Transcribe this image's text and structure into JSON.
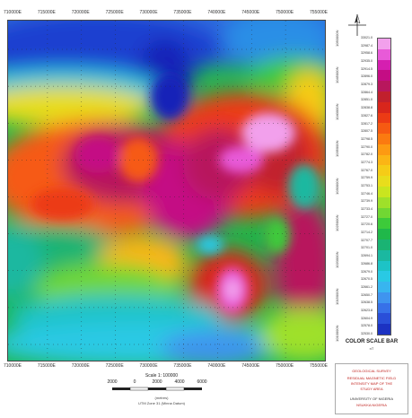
{
  "map": {
    "grid_top_labels": [
      "710000E",
      "715000E",
      "720000E",
      "725000E",
      "730000E",
      "735000E",
      "740000E",
      "745000E",
      "750000E",
      "755000E"
    ],
    "grid_bottom_labels": [
      "710000E",
      "715000E",
      "720000E",
      "725000E",
      "730000E",
      "735000E",
      "740000E",
      "745000E",
      "750000E",
      "755000E"
    ],
    "grid_right_labels": [
      "1050000N",
      "1045000N",
      "1040000N",
      "1035000N",
      "1030000N",
      "1025000N",
      "1020000N",
      "1015000N",
      "1010000N"
    ]
  },
  "north_arrow": {
    "icon": "north-arrow-icon"
  },
  "colorbar": {
    "title": "COLOR SCALE BAR",
    "unit": "nT",
    "labels": [
      "33021.0",
      "32987.4",
      "32958.6",
      "32935.0",
      "32914.5",
      "32896.0",
      "32879.3",
      "32864.4",
      "32851.0",
      "32838.8",
      "32827.6",
      "32817.2",
      "32807.5",
      "32798.5",
      "32790.0",
      "32782.0",
      "32774.3",
      "32767.0",
      "32759.9",
      "32753.1",
      "32746.4",
      "32739.9",
      "32733.4",
      "32727.0",
      "32720.6",
      "32714.2",
      "32707.7",
      "32701.0",
      "32694.1",
      "32686.8",
      "32679.0",
      "32670.5",
      "32661.2",
      "32650.7",
      "32638.5",
      "32623.8",
      "32604.9",
      "32578.0",
      "32530.0"
    ],
    "colors": [
      "#f2a0ec",
      "#e85ad8",
      "#d51fb0",
      "#c40d84",
      "#b8175d",
      "#c1202d",
      "#d8261c",
      "#ec3b15",
      "#f65a12",
      "#fb7a10",
      "#fd9a12",
      "#fbb515",
      "#f5cc17",
      "#e8dd1c",
      "#c9e51f",
      "#9fe02a",
      "#71d733",
      "#3dca3a",
      "#20b84a",
      "#1ab373",
      "#1bb8a0",
      "#1dc3c6",
      "#29c9e4",
      "#38b5ef",
      "#3f94ef",
      "#3771e8",
      "#2a4fd8",
      "#1c32c2"
    ]
  },
  "scale": {
    "title": "Scale 1: 100000",
    "numbers": [
      "2000",
      "0",
      "2000",
      "4000",
      "6000"
    ],
    "unit_line": "(metres)",
    "projection_line": "UTM Zone 31 (Minna Datum)"
  },
  "info_box": {
    "lines": [
      "GEOLOGICAL SURVEY",
      "RESIDUAL MAGNETIC FIELD",
      "INTENSITY MAP OF THE",
      "STUDY AREA",
      "UNIVERSITY OF NIGERIA",
      "NSUKKA NIGERIA"
    ]
  },
  "colors": {
    "frame": "#444444",
    "grid": "#2a2a2a",
    "info_red": "#c0231f"
  }
}
